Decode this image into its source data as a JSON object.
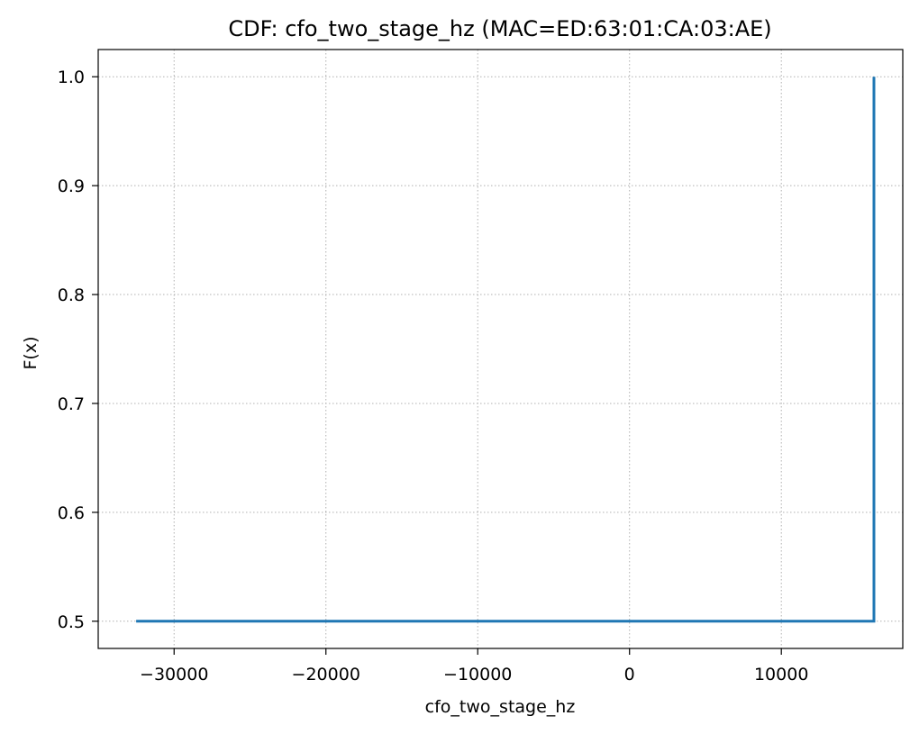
{
  "chart_data": {
    "type": "line",
    "title": "CDF: cfo_two_stage_hz (MAC=ED:63:01:CA:03:AE)",
    "xlabel": "cfo_two_stage_hz",
    "ylabel": "F(x)",
    "xlim": [
      -35000,
      18000
    ],
    "ylim": [
      0.475,
      1.025
    ],
    "xticks": [
      -30000,
      -20000,
      -10000,
      0,
      10000
    ],
    "xtick_labels": [
      "−30000",
      "−20000",
      "−10000",
      "0",
      "10000"
    ],
    "yticks": [
      0.5,
      0.6,
      0.7,
      0.8,
      0.9,
      1.0
    ],
    "ytick_labels": [
      "0.5",
      "0.6",
      "0.7",
      "0.8",
      "0.9",
      "1.0"
    ],
    "grid": true,
    "series": [
      {
        "color": "#1f77b4",
        "step": true,
        "x": [
          -32500,
          16100
        ],
        "y": [
          0.5,
          1.0
        ]
      }
    ]
  }
}
